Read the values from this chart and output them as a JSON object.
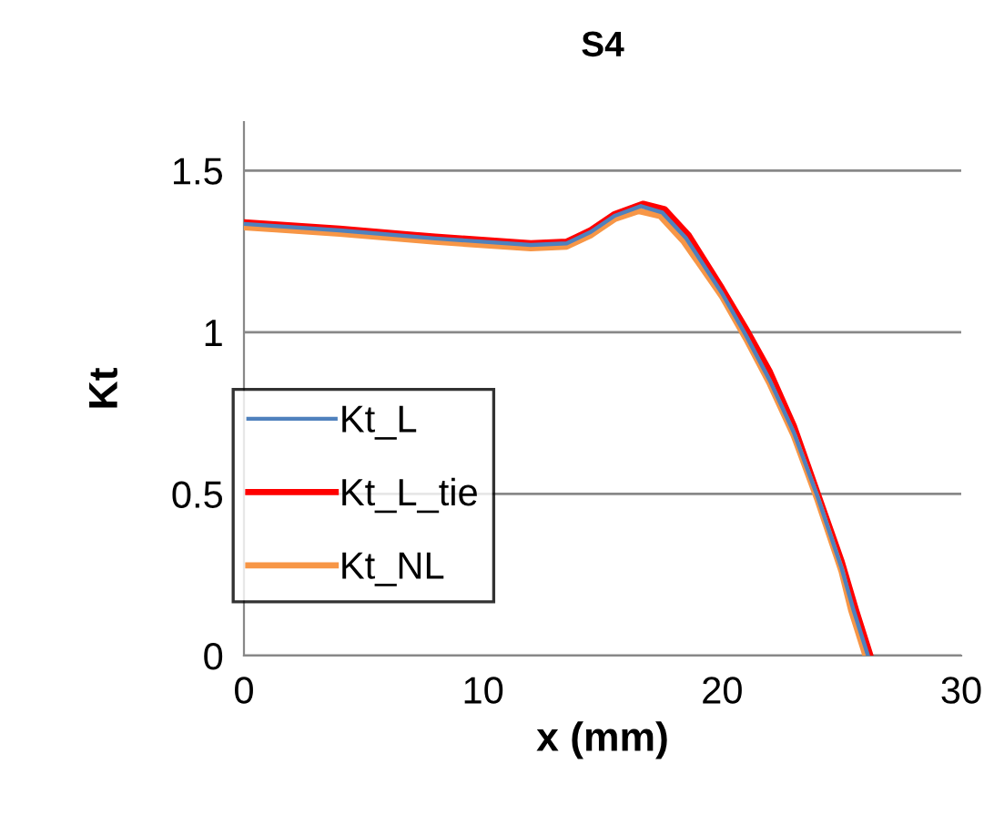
{
  "chart_data": {
    "type": "line",
    "title": "S4",
    "xlabel": "x (mm)",
    "ylabel": "Kt",
    "xlim": [
      0,
      30
    ],
    "xticks": [
      0,
      10,
      20,
      30
    ],
    "ylim": [
      0,
      1.65
    ],
    "yticks": [
      0,
      {
        "value": 0.5,
        "label": "0.5"
      },
      {
        "value": 1,
        "label": "1"
      },
      {
        "value": 1.5,
        "label": "1.5"
      }
    ],
    "grid": "y",
    "legend": "left",
    "marker": "none",
    "line_style": "solid",
    "series": [
      {
        "name": "Kt_L",
        "color": "#4f81bd",
        "x": [
          0,
          4,
          8,
          12,
          13.5,
          14.5,
          15.5,
          16.6,
          17.5,
          18.5,
          20,
          21,
          22,
          23,
          24,
          25,
          25.5,
          26.1
        ],
        "values": [
          1.335,
          1.315,
          1.29,
          1.27,
          1.275,
          1.31,
          1.36,
          1.39,
          1.37,
          1.29,
          1.12,
          0.99,
          0.85,
          0.69,
          0.49,
          0.27,
          0.14,
          0
        ]
      },
      {
        "name": "Kt_L_tie",
        "color": "#ff0000",
        "x": [
          0,
          4,
          8,
          12,
          13.5,
          14.5,
          15.5,
          16.7,
          17.6,
          18.6,
          20,
          21,
          22,
          23,
          24,
          25,
          25.6,
          26.2
        ],
        "values": [
          1.34,
          1.32,
          1.295,
          1.275,
          1.28,
          1.315,
          1.365,
          1.397,
          1.38,
          1.3,
          1.135,
          1.01,
          0.877,
          0.71,
          0.5,
          0.29,
          0.14,
          0
        ]
      },
      {
        "name": "Kt_NL",
        "color": "#f79646",
        "x": [
          0,
          4,
          8,
          12,
          13.5,
          14.5,
          15.5,
          16.5,
          17.4,
          18.4,
          20,
          21,
          22,
          23,
          24,
          25,
          25.4,
          26
        ],
        "values": [
          1.325,
          1.305,
          1.28,
          1.26,
          1.265,
          1.3,
          1.35,
          1.375,
          1.36,
          1.28,
          1.11,
          0.98,
          0.84,
          0.68,
          0.48,
          0.26,
          0.14,
          0
        ]
      }
    ]
  }
}
